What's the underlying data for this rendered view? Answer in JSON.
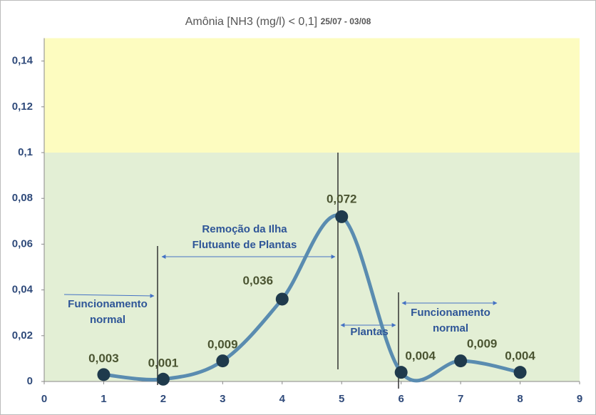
{
  "chart_data": {
    "type": "line",
    "title": "Amônia [NH3 (mg/l) < 0,1]",
    "subtitle": "25/07 - 03/08",
    "x": [
      1,
      2,
      3,
      4,
      5,
      6,
      7,
      8
    ],
    "values": [
      0.003,
      0.001,
      0.009,
      0.036,
      0.072,
      0.004,
      0.009,
      0.004
    ],
    "value_labels": [
      "0,003",
      "0,001",
      "0,009",
      "0,036",
      "0,072",
      "0,004",
      "0,009",
      "0,004"
    ],
    "color": "#5a8cb0",
    "marker_color": "#1f3a4c",
    "smooth": true,
    "xlim": [
      0,
      9
    ],
    "xticks": [
      0,
      1,
      2,
      3,
      4,
      5,
      6,
      7,
      8,
      9
    ],
    "ylim": [
      0,
      0.15
    ],
    "yticks": [
      0,
      {
        "value": 0.02,
        "label": "0,02"
      },
      {
        "value": 0.04,
        "label": "0,04"
      },
      {
        "value": 0.06,
        "label": "0,06"
      },
      {
        "value": 0.08,
        "label": "0,08"
      },
      {
        "value": 0.1,
        "label": "0,1"
      },
      {
        "value": 0.12,
        "label": "0,12"
      },
      {
        "value": 0.14,
        "label": "0,14"
      }
    ],
    "bands": [
      {
        "from": 0,
        "to": 0.1,
        "color": "#e3efd5"
      },
      {
        "from": 0.1,
        "to": 0.15,
        "color": "#fdfcc0"
      }
    ],
    "annotations": [
      {
        "lines": [
          "Funcionamento",
          "normal"
        ]
      },
      {
        "lines": [
          "Remoção da Ilha",
          "Flutuante de Plantas"
        ]
      },
      {
        "lines": [
          "Plantas"
        ]
      },
      {
        "lines": [
          "Funcionamento",
          "normal"
        ]
      }
    ]
  }
}
